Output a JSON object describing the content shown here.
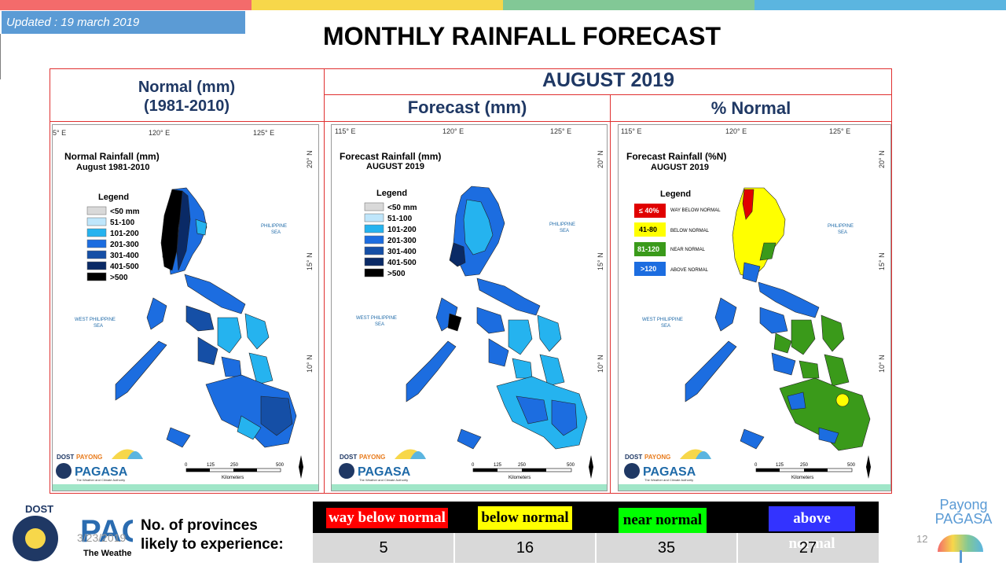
{
  "colors": {
    "stripe": [
      "#f36b6b",
      "#f7d74a",
      "#82c896",
      "#5bb5e0"
    ],
    "accent_blue": "#5b9bd5",
    "header_text": "#1f3864",
    "grid_line": "#e03030"
  },
  "updated": "Updated : 19 march 2019",
  "title": "MONTHLY RAINFALL FORECAST",
  "header": {
    "normal_line1": "Normal (mm)",
    "normal_line2": "(1981-2010)",
    "month": "AUGUST 2019",
    "forecast": "Forecast (mm)",
    "percent": "% Normal"
  },
  "maps": {
    "normal": {
      "title_line1": "Normal Rainfall (mm)",
      "title_line2": "August 1981-2010",
      "lon_labels": [
        "5° E",
        "120° E",
        "125° E"
      ],
      "lat_labels": [
        "20° N",
        "15° N",
        "10° N"
      ],
      "legend_title": "Legend",
      "legend": [
        "<50 mm",
        "51-100",
        "101-200",
        "201-300",
        "301-400",
        "401-500",
        ">500"
      ]
    },
    "forecast": {
      "title_line1": "Forecast Rainfall (mm)",
      "title_line2": "AUGUST 2019",
      "lon_labels": [
        "115° E",
        "120° E",
        "125° E"
      ],
      "lat_labels": [
        "20° N",
        "15° N",
        "10° N"
      ],
      "legend_title": "Legend",
      "legend": [
        "<50 mm",
        "51-100",
        "101-200",
        "201-300",
        "301-400",
        "401-500",
        ">500"
      ]
    },
    "percent": {
      "title_line1": "Forecast Rainfall (%N)",
      "title_line2": "AUGUST 2019",
      "lon_labels": [
        "115° E",
        "120° E",
        "125° E"
      ],
      "lat_labels": [
        "20° N",
        "15° N",
        "10° N"
      ],
      "legend_title": "Legend",
      "legend": [
        {
          "key": "≤ 40%",
          "desc": "WAY BELOW NORMAL"
        },
        {
          "key": "41-80",
          "desc": "BELOW NORMAL"
        },
        {
          "key": "81-120",
          "desc": "NEAR NORMAL"
        },
        {
          "key": ">120",
          "desc": "ABOVE NORMAL"
        }
      ]
    },
    "sea_east": [
      "PHILIPPINE",
      "SEA"
    ],
    "sea_west": [
      "WEST PHILIPPINE",
      "SEA"
    ],
    "scale_labels": [
      "0",
      "125",
      "250",
      "500"
    ],
    "scale_unit": "Kilometers",
    "logo_dost": "DOST",
    "logo_payong": "PAYONG",
    "logo_pagasa": "PAGASA",
    "logo_tagline": "The Weather and Climate Authority"
  },
  "bottom": {
    "provinces_line1": "No. of provinces",
    "provinces_line2": "likely to experience:",
    "date": "3/23/2019",
    "page": "12",
    "logo_dost": "DOST",
    "logo_pag": "PAG",
    "logo_tagline": "The Weathe",
    "payong_line1": "Payong",
    "payong_line2": "PAGASA",
    "categories": [
      {
        "label": "way below normal",
        "value": "5",
        "bg": "#ff0000",
        "fg": "#ffffff"
      },
      {
        "label": "below normal",
        "value": "16",
        "bg": "#ffff00",
        "fg": "#000000"
      },
      {
        "label": "near normal",
        "value": "35",
        "bg": "#00ff00",
        "fg": "#000000"
      },
      {
        "label": "above normal",
        "value": "27",
        "bg": "#3333ff",
        "fg": "#ffffff"
      }
    ]
  }
}
